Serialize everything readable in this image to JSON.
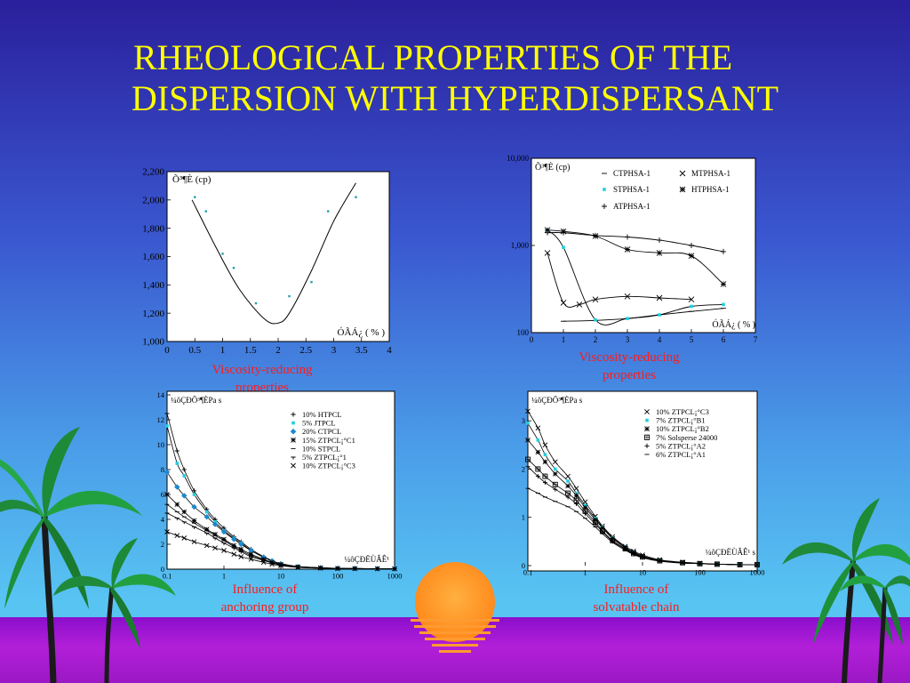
{
  "slide": {
    "title_line1": "RHEOLOGICAL PROPERTIES OF THE",
    "title_line2": "DISPERSION WITH HYPERDISPERSANT",
    "caption1_line1": "Viscosity-reducing",
    "caption1_line2": "properties",
    "caption2_line1": "Viscosity-reducing",
    "caption2_line2": "properties",
    "caption3_line1": "Influence of",
    "caption3_line2": "anchoring group",
    "caption4_line1": "Influence of",
    "caption4_line2": "solvatable chain",
    "colors": {
      "title": "#ffff00",
      "caption": "#ff1a1a",
      "cyan_marker": "#20d0e0"
    }
  },
  "chart_data": [
    {
      "type": "line",
      "ylabel": "Õ³¶È (cp)",
      "xlabel": "ÓÃÁ¿ ( % )",
      "xlim": [
        0,
        4
      ],
      "ylim": [
        1000,
        2200
      ],
      "xticks": [
        "0",
        "0.5",
        "1",
        "1.5",
        "2",
        "2.5",
        "3",
        "3.5",
        "4"
      ],
      "yticks": [
        "1,000",
        "1,200",
        "1,400",
        "1,600",
        "1,800",
        "2,000",
        "2,200"
      ],
      "series": [
        {
          "kind": "points",
          "x": [
            0.5,
            0.7,
            1.0,
            1.2,
            1.6,
            2.2,
            2.6,
            2.9,
            3.4
          ],
          "y": [
            2020,
            1920,
            1620,
            1520,
            1270,
            1320,
            1420,
            1920,
            2020
          ]
        },
        {
          "kind": "line",
          "x": [
            0.45,
            0.9,
            1.3,
            1.75,
            2.0,
            2.2,
            2.6,
            3.0,
            3.4
          ],
          "y": [
            2000,
            1650,
            1370,
            1160,
            1130,
            1200,
            1500,
            1850,
            2120
          ]
        }
      ]
    },
    {
      "type": "line",
      "ylabel": "Õ³¶È (cp)",
      "xlabel": "ÓÃÁ¿ ( % )",
      "ylog": true,
      "xlim": [
        0,
        7
      ],
      "ylim": [
        100,
        10000
      ],
      "xticks": [
        "0",
        "1",
        "2",
        "3",
        "4",
        "5",
        "6",
        "7"
      ],
      "yticks": [
        "100",
        "1,000",
        "10,000"
      ],
      "series": [
        {
          "name": "CTPHSA-1",
          "marker": "dash",
          "x": [
            1,
            2,
            3,
            4,
            5,
            6
          ],
          "y": [
            135,
            138,
            145,
            160,
            175,
            190
          ]
        },
        {
          "name": "STPHSA-1",
          "marker": "cyan",
          "x": [
            0.5,
            1,
            2,
            3,
            4,
            5,
            6
          ],
          "y": [
            1500,
            950,
            140,
            145,
            160,
            200,
            210
          ]
        },
        {
          "name": "ATPHSA-1",
          "marker": "plus",
          "x": [
            0.5,
            1,
            2,
            3,
            4,
            5,
            6
          ],
          "y": [
            1400,
            1400,
            1300,
            1250,
            1150,
            1000,
            850
          ]
        },
        {
          "name": "MTPHSA-1",
          "marker": "x",
          "x": [
            0.5,
            1,
            1.5,
            2,
            3,
            4,
            5
          ],
          "y": [
            820,
            220,
            210,
            240,
            260,
            250,
            240
          ]
        },
        {
          "name": "HTPHSA-1",
          "marker": "asterisk",
          "x": [
            0.5,
            1,
            2,
            3,
            4,
            5,
            6
          ],
          "y": [
            1500,
            1450,
            1280,
            900,
            820,
            760,
            360
          ]
        }
      ]
    },
    {
      "type": "line",
      "ylabel": "¼ôÇÐÕ³¶ÈPa s",
      "xlabel": "¼ôÇÐËÙÂÊ¹",
      "xlog": true,
      "xlim": [
        0.1,
        1000
      ],
      "ylim": [
        0,
        14
      ],
      "xticks": [
        "0.1",
        "1",
        "10",
        "100",
        "1000"
      ],
      "yticks": [
        "0",
        "2",
        "4",
        "6",
        "8",
        "10",
        "12",
        "14"
      ],
      "x": [
        0.1,
        0.15,
        0.2,
        0.3,
        0.5,
        0.7,
        1,
        1.5,
        2,
        3,
        5,
        7,
        10,
        20,
        50,
        100,
        200,
        500,
        1000
      ],
      "series": [
        {
          "name": "10% HTPCL",
          "marker": "plus",
          "y": [
            12.5,
            9.5,
            8.0,
            6.3,
            4.8,
            4.0,
            3.3,
            2.6,
            2.2,
            1.6,
            1.0,
            0.7,
            0.45,
            0.22,
            0.12,
            0.07,
            0.05,
            0.04,
            0.03
          ]
        },
        {
          "name": "5% JTPCL",
          "marker": "cyan",
          "y": [
            11.5,
            8.5,
            7.5,
            6.0,
            4.6,
            3.8,
            3.1,
            2.5,
            2.1,
            1.5,
            0.95,
            0.68,
            0.43,
            0.21,
            0.11,
            0.07,
            0.05,
            0.04,
            0.03
          ]
        },
        {
          "name": "20% CTPCL",
          "marker": "diamond",
          "y": [
            7.8,
            6.6,
            5.9,
            5.0,
            4.2,
            3.6,
            3.0,
            2.4,
            2.0,
            1.5,
            0.95,
            0.65,
            0.42,
            0.2,
            0.11,
            0.07,
            0.05,
            0.04,
            0.03
          ]
        },
        {
          "name": "15% ZTPCL¡°C1",
          "marker": "asterisk",
          "y": [
            6.0,
            5.2,
            4.6,
            3.9,
            3.2,
            2.8,
            2.4,
            1.9,
            1.6,
            1.2,
            0.8,
            0.55,
            0.38,
            0.18,
            0.1,
            0.06,
            0.05,
            0.04,
            0.03
          ]
        },
        {
          "name": "10% STPCL",
          "marker": "dash",
          "y": [
            5.2,
            4.6,
            4.2,
            3.7,
            3.1,
            2.7,
            2.3,
            1.8,
            1.5,
            1.1,
            0.75,
            0.52,
            0.35,
            0.17,
            0.09,
            0.06,
            0.05,
            0.04,
            0.03
          ]
        },
        {
          "name": "5% ZTPCL¡°1",
          "marker": "tplus",
          "y": [
            4.5,
            4.1,
            3.8,
            3.4,
            2.9,
            2.5,
            2.1,
            1.7,
            1.4,
            1.0,
            0.7,
            0.5,
            0.33,
            0.16,
            0.09,
            0.06,
            0.05,
            0.04,
            0.03
          ]
        },
        {
          "name": "10% ZTPCL¡°C3",
          "marker": "x",
          "y": [
            3.0,
            2.7,
            2.5,
            2.2,
            1.9,
            1.7,
            1.5,
            1.2,
            1.0,
            0.8,
            0.55,
            0.4,
            0.28,
            0.14,
            0.08,
            0.05,
            0.04,
            0.03,
            0.03
          ]
        }
      ]
    },
    {
      "type": "line",
      "ylabel": "¼ôÇÐÕ³¶ÈPa s",
      "xlabel": "¼ôÇÐËÙÂÊ¹ s",
      "xlog": true,
      "xlim": [
        0.1,
        1000
      ],
      "ylim": [
        0,
        3.5
      ],
      "xticks": [
        "0.1",
        "1",
        "10",
        "100",
        "1000"
      ],
      "yticks": [
        "0",
        "1",
        "2",
        "3"
      ],
      "x": [
        0.1,
        0.15,
        0.2,
        0.3,
        0.5,
        0.7,
        1,
        1.5,
        2,
        3,
        5,
        7,
        10,
        20,
        50,
        100,
        200,
        500,
        1000
      ],
      "series": [
        {
          "name": "10% ZTPCL¡°C3",
          "marker": "x",
          "y": [
            3.2,
            2.85,
            2.5,
            2.15,
            1.85,
            1.6,
            1.32,
            1.02,
            0.82,
            0.6,
            0.4,
            0.3,
            0.22,
            0.12,
            0.07,
            0.05,
            0.03,
            0.02,
            0.02
          ]
        },
        {
          "name": "7% ZTPCL¡°B1",
          "marker": "cyan",
          "y": [
            2.95,
            2.6,
            2.3,
            2.0,
            1.75,
            1.5,
            1.25,
            0.98,
            0.8,
            0.58,
            0.38,
            0.28,
            0.2,
            0.11,
            0.06,
            0.04,
            0.03,
            0.02,
            0.02
          ]
        },
        {
          "name": "10% ZTPCL¡°B2",
          "marker": "star",
          "y": [
            2.6,
            2.35,
            2.15,
            1.9,
            1.65,
            1.45,
            1.2,
            0.95,
            0.78,
            0.56,
            0.37,
            0.27,
            0.19,
            0.1,
            0.06,
            0.04,
            0.03,
            0.02,
            0.02
          ]
        },
        {
          "name": "7% Solsperse 24000",
          "marker": "square",
          "y": [
            2.2,
            2.0,
            1.85,
            1.68,
            1.5,
            1.35,
            1.13,
            0.9,
            0.72,
            0.52,
            0.35,
            0.25,
            0.18,
            0.1,
            0.06,
            0.04,
            0.03,
            0.02,
            0.02
          ]
        },
        {
          "name": "5% ZTPCL¡°A2",
          "marker": "plus",
          "y": [
            2.05,
            1.85,
            1.72,
            1.58,
            1.42,
            1.28,
            1.08,
            0.86,
            0.7,
            0.5,
            0.34,
            0.24,
            0.17,
            0.1,
            0.06,
            0.04,
            0.03,
            0.02,
            0.02
          ]
        },
        {
          "name": "6% ZTPCL¡°A1",
          "marker": "dash",
          "y": [
            1.6,
            1.5,
            1.42,
            1.33,
            1.22,
            1.12,
            0.98,
            0.8,
            0.66,
            0.48,
            0.32,
            0.23,
            0.16,
            0.09,
            0.05,
            0.04,
            0.03,
            0.02,
            0.02
          ]
        }
      ]
    }
  ]
}
